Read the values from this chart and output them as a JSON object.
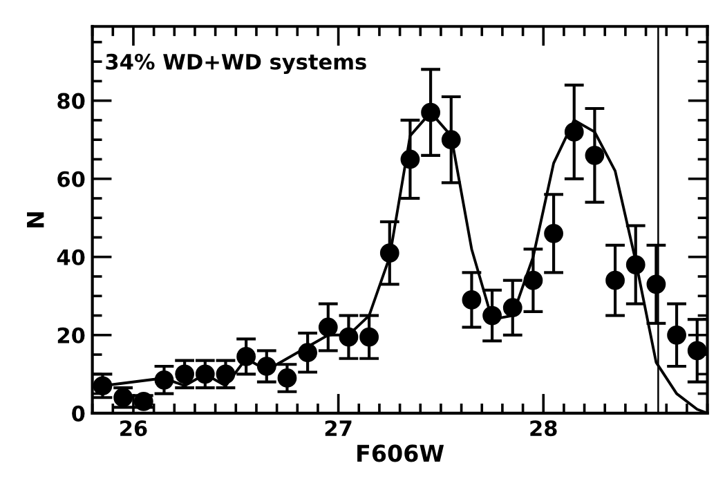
{
  "chart_data": {
    "type": "scatter",
    "xlabel": "F606W",
    "ylabel": "N",
    "annotations": [
      "34% WD+WD systems"
    ],
    "xlim": [
      25.8,
      28.8
    ],
    "ylim": [
      0,
      99
    ],
    "xticks": [
      26,
      27,
      28
    ],
    "yticks": [
      0,
      20,
      40,
      60,
      80
    ],
    "grid": false,
    "legend": false,
    "ref_lines": [
      {
        "axis": "x",
        "value": 28.56,
        "color": "#000000"
      }
    ],
    "series": [
      {
        "color": "#000000",
        "marker": "circle",
        "x": [
          25.85,
          25.95,
          26.05,
          26.15,
          26.25,
          26.35,
          26.45,
          26.55,
          26.65,
          26.75,
          26.85,
          26.95,
          27.05,
          27.15,
          27.25,
          27.35,
          27.45,
          27.55,
          27.65,
          27.75,
          27.85,
          27.95,
          28.05,
          28.15,
          28.25,
          28.35,
          28.45,
          28.55,
          28.65,
          28.75
        ],
        "values": [
          7,
          4,
          3,
          8.5,
          10,
          10,
          10,
          14.5,
          12,
          9,
          15.5,
          22,
          19.5,
          19.5,
          41,
          65,
          77,
          70,
          29,
          25,
          27,
          34,
          46,
          72,
          66,
          34,
          38,
          33,
          20,
          16
        ],
        "errors": [
          3,
          2.5,
          1.5,
          3.5,
          3.5,
          3.5,
          3.5,
          4.5,
          4,
          3.5,
          5,
          6,
          5.5,
          5.5,
          8,
          10,
          11,
          11,
          7,
          6.5,
          7,
          8,
          10,
          12,
          12,
          9,
          10,
          10,
          8,
          8
        ]
      },
      {
        "type": "line",
        "color": "#000000",
        "marker": "none",
        "line_style": "solid",
        "x": [
          25.8,
          25.85,
          26.15,
          26.25,
          26.35,
          26.45,
          26.55,
          26.65,
          26.85,
          26.95,
          27.05,
          27.15,
          27.25,
          27.35,
          27.45,
          27.55,
          27.65,
          27.75,
          27.85,
          27.95,
          28.05,
          28.15,
          28.25,
          28.35,
          28.45,
          28.55,
          28.65,
          28.75,
          28.8
        ],
        "values": [
          7,
          7,
          9,
          7,
          10,
          7,
          14,
          11,
          17,
          20,
          20,
          25,
          40,
          71,
          77,
          71,
          42,
          24,
          25,
          40,
          64,
          75,
          72,
          62,
          39,
          13,
          5,
          1,
          0
        ]
      }
    ]
  }
}
